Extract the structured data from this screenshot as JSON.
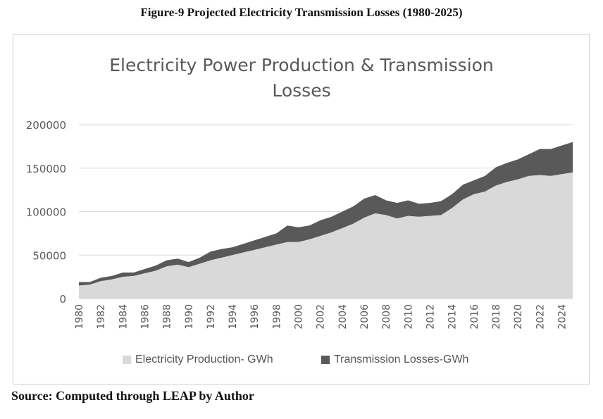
{
  "figure_caption": "Figure-9 Projected Electricity Transmission Losses (1980-2025)",
  "source_note": "Source: Computed through LEAP by Author",
  "colors": {
    "production": "#d9d9d9",
    "losses": "#595959",
    "grid": "#d9d9d9",
    "text": "#595959"
  },
  "chart_data": {
    "type": "area",
    "stacked": true,
    "title_lines": [
      "Electricity Power Production & Transmission",
      "Losses"
    ],
    "x": [
      1980,
      1981,
      1982,
      1983,
      1984,
      1985,
      1986,
      1987,
      1988,
      1989,
      1990,
      1991,
      1992,
      1993,
      1994,
      1995,
      1996,
      1997,
      1998,
      1999,
      2000,
      2001,
      2002,
      2003,
      2004,
      2005,
      2006,
      2007,
      2008,
      2009,
      2010,
      2011,
      2012,
      2013,
      2014,
      2015,
      2016,
      2017,
      2018,
      2019,
      2020,
      2021,
      2022,
      2023,
      2024,
      2025
    ],
    "x_tick_labels": [
      "1980",
      "1982",
      "1984",
      "1986",
      "1988",
      "1990",
      "1992",
      "1994",
      "1996",
      "1998",
      "2000",
      "2002",
      "2004",
      "2006",
      "2008",
      "2010",
      "2012",
      "2014",
      "2016",
      "2018",
      "2020",
      "2022",
      "2024"
    ],
    "y_ticks": [
      "0",
      "50000",
      "100000",
      "150000",
      "200000"
    ],
    "ylim": [
      0,
      200000
    ],
    "grid": true,
    "legend_position": "bottom",
    "series": [
      {
        "name": "Electricity Production- GWh",
        "values": [
          15000,
          16000,
          20000,
          22000,
          25000,
          26000,
          29000,
          32000,
          37000,
          39000,
          36000,
          40000,
          44000,
          47000,
          50000,
          53000,
          56000,
          59000,
          62000,
          65000,
          65000,
          68000,
          72000,
          76000,
          81000,
          86000,
          93000,
          98000,
          96000,
          92000,
          95000,
          94000,
          95000,
          96000,
          104000,
          114000,
          120000,
          123000,
          130000,
          134000,
          137000,
          141000,
          142000,
          141000,
          143000,
          145000
        ]
      },
      {
        "name": "Transmission Losses-GWh",
        "values": [
          4000,
          3000,
          4000,
          4000,
          5000,
          4000,
          5000,
          6000,
          7000,
          7000,
          6000,
          7000,
          10000,
          10000,
          9000,
          10000,
          11000,
          12000,
          13000,
          19000,
          17000,
          16000,
          18000,
          18000,
          19000,
          20000,
          22000,
          21000,
          17000,
          18000,
          18000,
          15000,
          15000,
          16000,
          16000,
          17000,
          16000,
          18000,
          21000,
          22000,
          23000,
          25000,
          30000,
          31000,
          33000,
          35000
        ]
      }
    ]
  }
}
